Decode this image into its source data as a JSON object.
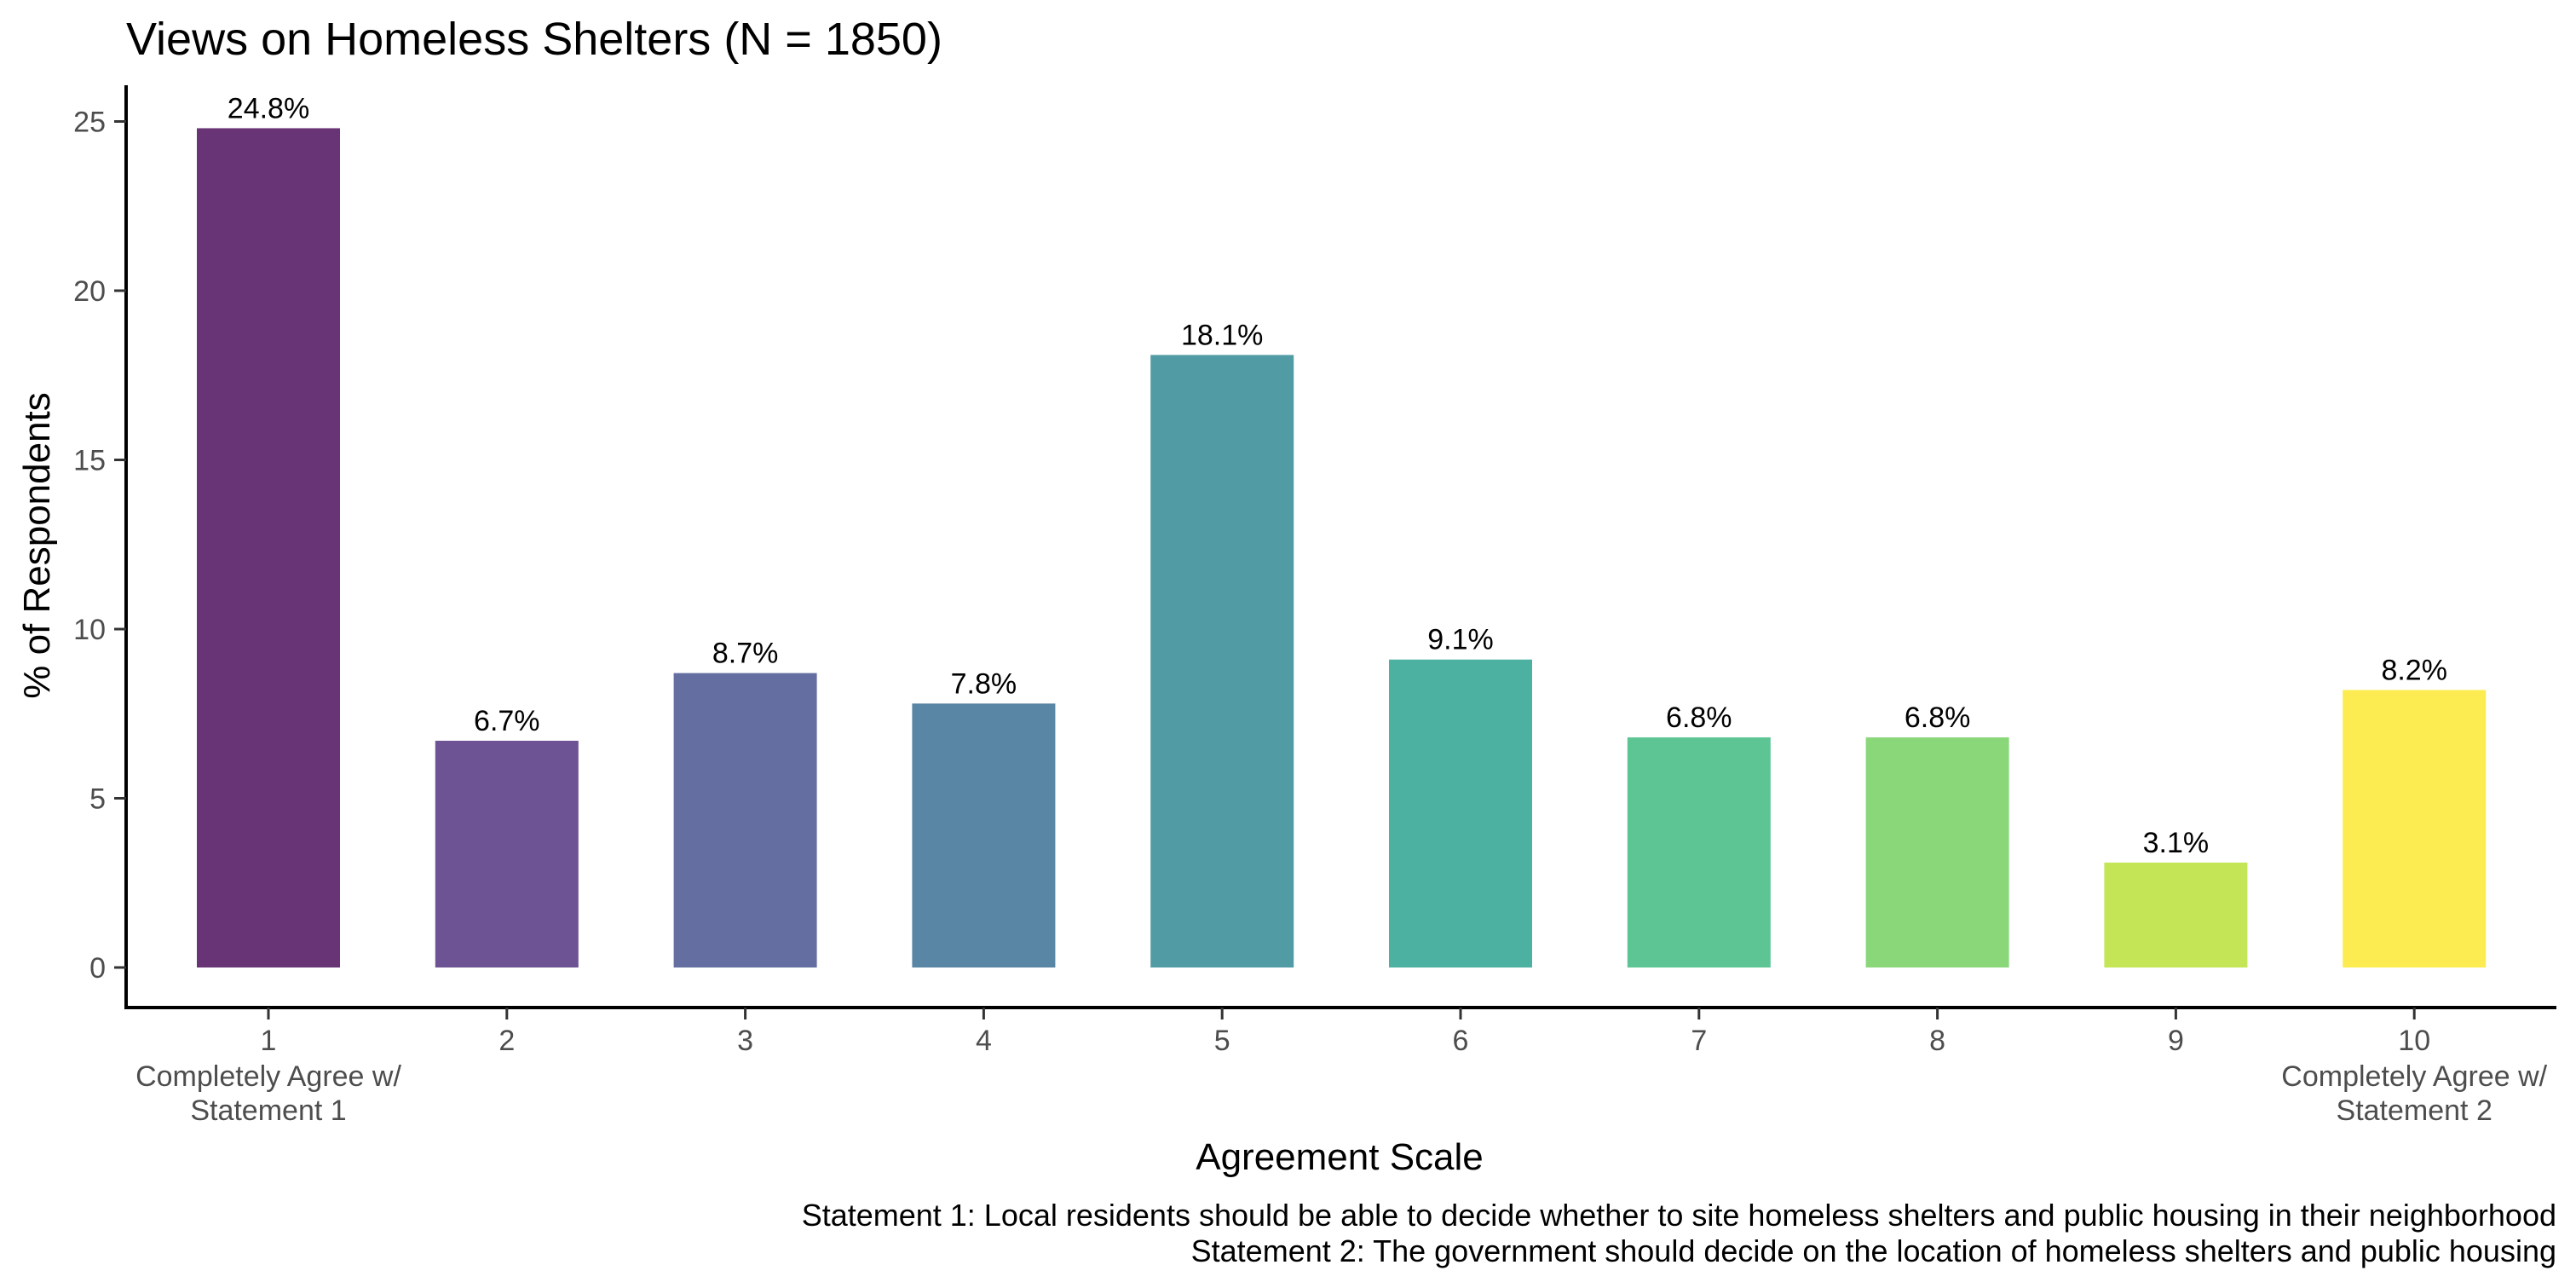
{
  "chart_data": {
    "type": "bar",
    "title": "Views on Homeless Shelters (N = 1850)",
    "xlabel": "Agreement Scale",
    "ylabel": "% of Respondents",
    "ylim": [
      0,
      26
    ],
    "yticks": [
      "0",
      "5",
      "10",
      "15",
      "20",
      "25"
    ],
    "grid": false,
    "legend": "none",
    "categories": [
      "1",
      "2",
      "3",
      "4",
      "5",
      "6",
      "7",
      "8",
      "9",
      "10"
    ],
    "category_sublabels": [
      [
        "Completely Agree w/",
        "Statement 1"
      ],
      [],
      [],
      [],
      [],
      [],
      [],
      [],
      [],
      [
        "Completely Agree w/",
        "Statement 2"
      ]
    ],
    "values": [
      24.8,
      6.7,
      8.7,
      7.8,
      18.1,
      9.1,
      6.8,
      6.8,
      3.1,
      8.2
    ],
    "data_labels": [
      "24.8%",
      "6.7%",
      "8.7%",
      "7.8%",
      "18.1%",
      "9.1%",
      "6.8%",
      "6.8%",
      "3.1%",
      "8.2%"
    ],
    "colors": [
      "#440154",
      "#482878",
      "#3E4A89",
      "#31688E",
      "#26828E",
      "#1F9E89",
      "#35B779",
      "#6DCD59",
      "#B4DE2C",
      "#FDE725"
    ],
    "caption": [
      "Statement 1: Local residents should be able to decide whether to site homeless shelters and public housing in their neighborhood",
      "Statement 2: The government should decide on the location of homeless shelters and public housing"
    ]
  }
}
